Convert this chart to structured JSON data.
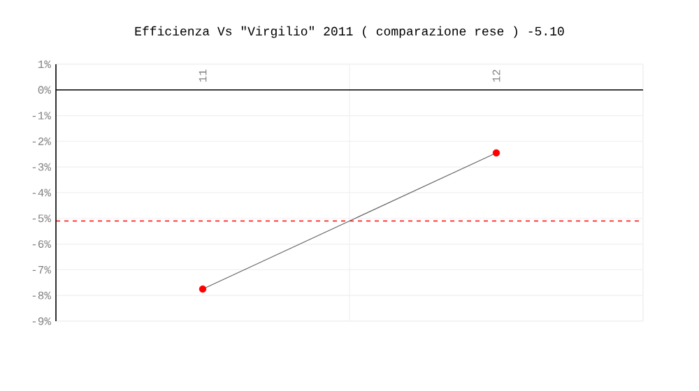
{
  "chart_data": {
    "type": "line",
    "title": "Efficienza Vs \"Virgilio\" 2011 ( comparazione rese ) -5.10",
    "categories": [
      "11",
      "12"
    ],
    "series": [
      {
        "color": "#666666",
        "colors": [
          "#ff0000",
          "#ff0000"
        ],
        "values": [
          -7.75,
          -2.45
        ]
      }
    ],
    "ylim": [
      -9,
      1
    ],
    "yticks": [
      {
        "value": 1,
        "label": "1%"
      },
      {
        "value": 0,
        "label": "0%"
      },
      {
        "value": -1,
        "label": "-1%"
      },
      {
        "value": -2,
        "label": "-2%"
      },
      {
        "value": -3,
        "label": "-3%"
      },
      {
        "value": -4,
        "label": "-4%"
      },
      {
        "value": -5,
        "label": "-5%"
      },
      {
        "value": -6,
        "label": "-6%"
      },
      {
        "value": -7,
        "label": "-7%"
      },
      {
        "value": -8,
        "label": "-8%"
      },
      {
        "value": -9,
        "label": "-9%"
      }
    ],
    "ref_lines": [
      {
        "axis": "y",
        "value": 0,
        "color": "#000000",
        "line_style": "solid"
      },
      {
        "axis": "y",
        "value": -5.1,
        "color": "#ff0000",
        "line_style": "dashed"
      }
    ],
    "grid": true,
    "marker": "circle",
    "line_style": "solid"
  }
}
